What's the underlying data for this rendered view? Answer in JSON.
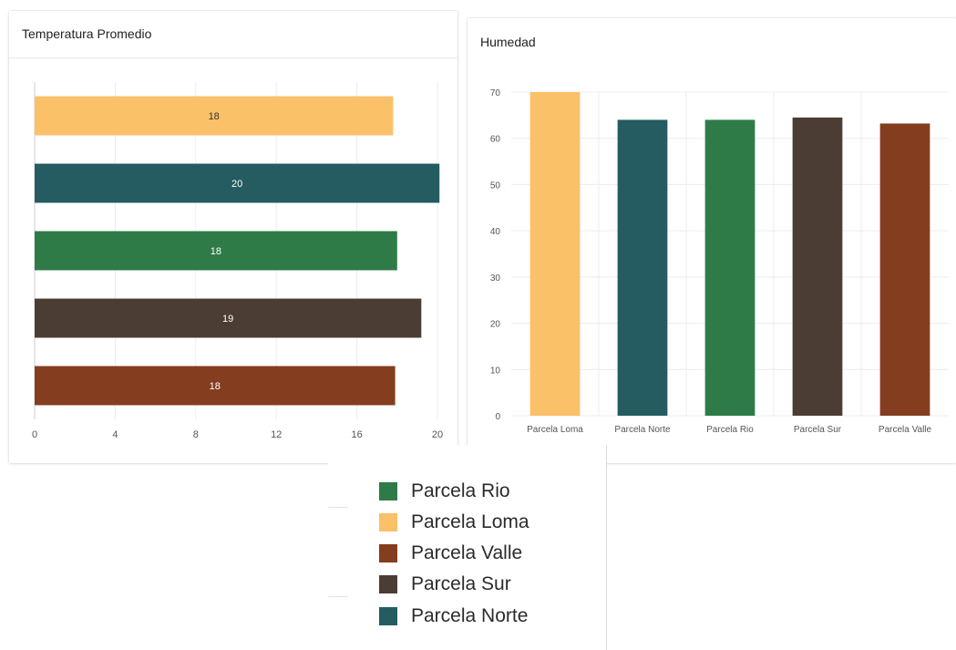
{
  "charts": {
    "temperature": {
      "title": "Temperatura Promedio"
    },
    "humidity": {
      "title": "Humedad"
    }
  },
  "colors": {
    "Parcela Loma": "#fac168",
    "Parcela Norte": "#245c62",
    "Parcela Rio": "#2f7b48",
    "Parcela Sur": "#4b3d33",
    "Parcela Valle": "#843d1f",
    "grid": "#ececec",
    "axis_text": "#555555"
  },
  "legend": {
    "items": [
      {
        "label": "Parcela Rio",
        "color": "#2f7b48"
      },
      {
        "label": "Parcela Loma",
        "color": "#fac168"
      },
      {
        "label": "Parcela Valle",
        "color": "#843d1f"
      },
      {
        "label": "Parcela Sur",
        "color": "#4b3d33"
      },
      {
        "label": "Parcela Norte",
        "color": "#245c62"
      }
    ]
  },
  "chart_data": [
    {
      "type": "bar",
      "orientation": "horizontal",
      "title": "Temperatura Promedio",
      "categories": [
        "Parcela Loma",
        "Parcela Norte",
        "Parcela Rio",
        "Parcela Sur",
        "Parcela Valle"
      ],
      "values": [
        17.8,
        20.1,
        18.0,
        19.2,
        17.9
      ],
      "data_labels": [
        "18",
        "20",
        "18",
        "19",
        "18"
      ],
      "x_ticks": [
        "0",
        "4",
        "8",
        "12",
        "16",
        "20"
      ],
      "xlim": [
        0,
        20
      ],
      "grid": true
    },
    {
      "type": "bar",
      "orientation": "vertical",
      "title": "Humedad",
      "categories": [
        "Parcela Loma",
        "Parcela Norte",
        "Parcela Rio",
        "Parcela Sur",
        "Parcela Valle"
      ],
      "values": [
        70,
        64,
        64,
        64.5,
        63.2
      ],
      "y_ticks": [
        "0",
        "10",
        "20",
        "30",
        "40",
        "50",
        "60",
        "70"
      ],
      "ylim": [
        0,
        70
      ],
      "grid": true
    }
  ]
}
